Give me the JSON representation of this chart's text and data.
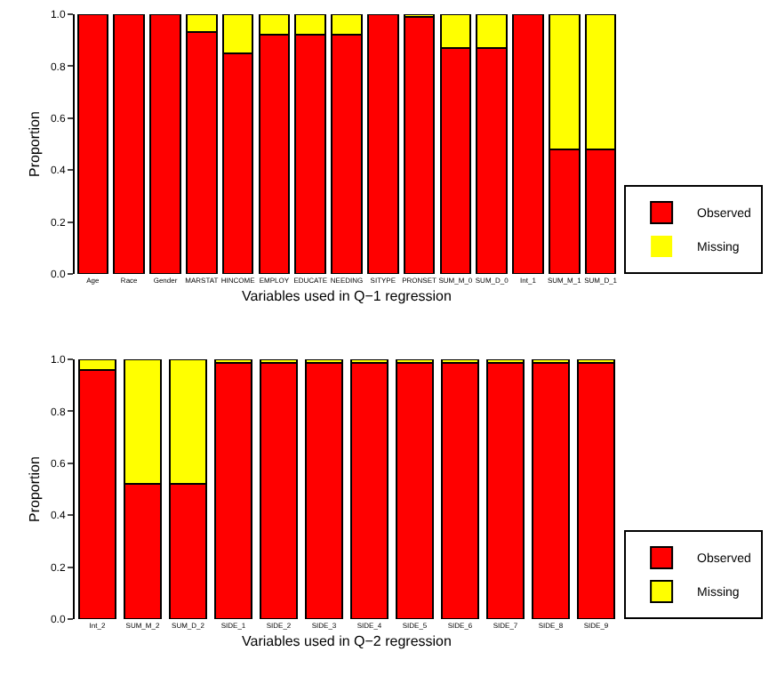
{
  "chart_data": [
    {
      "type": "bar",
      "stacked": true,
      "xlabel": "Variables used in Q−1 regression",
      "ylabel": "Proportion",
      "categories": [
        "Age",
        "Race",
        "Gender",
        "MARSTAT",
        "HINCOME",
        "EMPLOY",
        "EDUCATE",
        "NEEDING",
        "SITYPE",
        "PRONSET",
        "SUM_M_0",
        "SUM_D_0",
        "Int_1",
        "SUM_M_1",
        "SUM_D_1"
      ],
      "series": [
        {
          "name": "Observed",
          "color": "#ff0000",
          "values": [
            1,
            1,
            1,
            0.93,
            0.85,
            0.92,
            0.92,
            0.92,
            1,
            0.99,
            0.87,
            0.87,
            1,
            0.48,
            0.48
          ]
        },
        {
          "name": "Missing",
          "color": "#ffff00",
          "values": [
            0,
            0,
            0,
            0.07,
            0.15,
            0.08,
            0.08,
            0.08,
            0,
            0.01,
            0.13,
            0.13,
            0,
            0.52,
            0.52
          ]
        }
      ],
      "ylim": [
        0,
        1
      ],
      "yticks": [
        {
          "value": 0,
          "label": "0.0"
        },
        {
          "value": 0.2,
          "label": "0.2"
        },
        {
          "value": 0.4,
          "label": "0.4"
        },
        {
          "value": 0.6,
          "label": "0.6"
        },
        {
          "value": 0.8,
          "label": "0.8"
        },
        {
          "value": 1,
          "label": "1.0"
        }
      ],
      "grid": false,
      "legend": "bottom right"
    },
    {
      "type": "bar",
      "stacked": true,
      "xlabel": "Variables used in Q−2 regression",
      "ylabel": "Proportion",
      "categories": [
        "Int_2",
        "SUM_M_2",
        "SUM_D_2",
        "SIDE_1",
        "SIDE_2",
        "SIDE_3",
        "SIDE_4",
        "SIDE_5",
        "SIDE_6",
        "SIDE_7",
        "SIDE_8",
        "SIDE_9"
      ],
      "series": [
        {
          "name": "Observed",
          "color": "#ff0000",
          "values": [
            0.96,
            0.52,
            0.52,
            0.985,
            0.985,
            0.985,
            0.985,
            0.985,
            0.985,
            0.985,
            0.985,
            0.985
          ]
        },
        {
          "name": "Missing",
          "color": "#ffff00",
          "values": [
            0.04,
            0.48,
            0.48,
            0.015,
            0.015,
            0.015,
            0.015,
            0.015,
            0.015,
            0.015,
            0.015,
            0.015
          ]
        }
      ],
      "ylim": [
        0,
        1
      ],
      "yticks": [
        {
          "value": 0,
          "label": "0.0"
        },
        {
          "value": 0.2,
          "label": "0.2"
        },
        {
          "value": 0.4,
          "label": "0.4"
        },
        {
          "value": 0.6,
          "label": "0.6"
        },
        {
          "value": 0.8,
          "label": "0.8"
        },
        {
          "value": 1,
          "label": "1.0"
        }
      ],
      "grid": false,
      "legend": "bottom right"
    }
  ]
}
